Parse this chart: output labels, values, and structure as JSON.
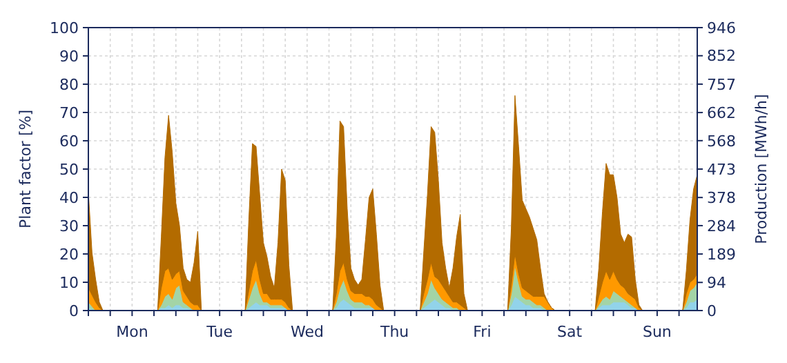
{
  "chart_data": {
    "type": "area",
    "stacked": true,
    "ylabel": "Plant factor [%]",
    "y2label": "Production [MWh/h]",
    "categories": [
      null,
      null,
      null,
      null,
      null,
      null,
      null,
      null,
      null,
      null,
      null,
      null,
      "Mon",
      null,
      null,
      null,
      null,
      null,
      null,
      null,
      null,
      null,
      null,
      null,
      null,
      null,
      null,
      null,
      null,
      null,
      null,
      null,
      null,
      null,
      null,
      null,
      "Tue",
      null,
      null,
      null,
      null,
      null,
      null,
      null,
      null,
      null,
      null,
      null,
      null,
      null,
      null,
      null,
      null,
      null,
      null,
      null,
      null,
      null,
      null,
      null,
      "Wed",
      null,
      null,
      null,
      null,
      null,
      null,
      null,
      null,
      null,
      null,
      null,
      null,
      null,
      null,
      null,
      null,
      null,
      null,
      null,
      null,
      null,
      null,
      null,
      "Thu",
      null,
      null,
      null,
      null,
      null,
      null,
      null,
      null,
      null,
      null,
      null,
      null,
      null,
      null,
      null,
      null,
      null,
      null,
      null,
      null,
      null,
      null,
      null,
      "Fri",
      null,
      null,
      null,
      null,
      null,
      null,
      null,
      null,
      null,
      null,
      null,
      null,
      null,
      null,
      null,
      null,
      null,
      null,
      null,
      null,
      null,
      null,
      null,
      "Sat",
      null,
      null,
      null,
      null,
      null,
      null,
      null,
      null,
      null,
      null,
      null,
      null,
      null,
      null,
      null,
      null,
      null,
      null,
      null,
      null,
      null,
      null,
      null,
      "Sun",
      null,
      null,
      null,
      null,
      null,
      null,
      null,
      null,
      null,
      null,
      null
    ],
    "series": [
      {
        "color": "#92d3ea",
        "values": [
          1,
          0.5,
          0,
          0,
          0,
          0,
          0,
          0,
          0,
          0,
          0,
          0,
          0,
          0,
          0,
          0,
          0,
          0,
          0,
          0,
          1,
          1,
          2,
          1,
          2,
          2,
          1,
          1,
          0.5,
          0,
          0,
          0,
          0,
          0,
          0,
          0,
          0,
          0,
          0,
          0,
          0,
          0,
          0,
          0,
          1,
          2,
          3,
          2,
          2,
          2,
          1,
          1,
          1,
          1,
          1,
          0,
          0,
          0,
          0,
          0,
          0,
          0,
          0,
          0,
          0,
          0,
          0,
          0,
          1,
          3,
          4,
          3,
          2,
          1,
          1,
          1,
          1,
          1,
          1,
          0,
          0,
          0,
          0,
          0,
          0,
          0,
          0,
          0,
          0,
          0,
          0,
          0,
          1,
          2,
          3,
          4,
          3,
          2,
          1,
          1,
          0,
          0,
          0,
          0,
          0,
          0,
          0,
          0,
          0,
          0,
          0,
          0,
          0,
          0,
          0,
          0,
          2,
          5,
          4,
          3,
          2,
          2,
          1,
          1,
          1,
          0,
          0,
          0,
          0,
          0,
          0,
          0,
          0,
          0,
          0,
          0,
          0,
          0,
          0,
          0,
          1,
          2,
          2,
          2,
          3,
          3,
          3,
          3,
          2,
          1,
          1,
          0,
          0,
          0,
          0,
          0,
          0,
          0,
          0,
          0,
          0,
          0,
          0,
          0,
          1,
          3,
          3,
          4
        ]
      },
      {
        "color": "#a3d4a6",
        "values": [
          2,
          1,
          0,
          0,
          0,
          0,
          0,
          0,
          0,
          0,
          0,
          0,
          0,
          0,
          0,
          0,
          0,
          0,
          0,
          0,
          1,
          4,
          4,
          3,
          6,
          7,
          2,
          1,
          0.5,
          0,
          0,
          0,
          0,
          0,
          0,
          0,
          0,
          0,
          0,
          0,
          0,
          0,
          0,
          0,
          3,
          6,
          8,
          4,
          1,
          1,
          1,
          1,
          1,
          1,
          0,
          0,
          0,
          0,
          0,
          0,
          0,
          0,
          0,
          0,
          0,
          0,
          0,
          0,
          2,
          5,
          7,
          4,
          2,
          2,
          2,
          2,
          1,
          1,
          0,
          0,
          0,
          0,
          0,
          0,
          0,
          0,
          0,
          0,
          0,
          0,
          0,
          0,
          2,
          4,
          8,
          4,
          3,
          2,
          2,
          1,
          1,
          1,
          0,
          0,
          0,
          0,
          0,
          0,
          0,
          0,
          0,
          0,
          0,
          0,
          0,
          0,
          4,
          11,
          6,
          2,
          2,
          2,
          2,
          1,
          1,
          1,
          0,
          0,
          0,
          0,
          0,
          0,
          0,
          0,
          0,
          0,
          0,
          0,
          0,
          0,
          1,
          2,
          3,
          2,
          4,
          3,
          2,
          1,
          1,
          1,
          0,
          0,
          0,
          0,
          0,
          0,
          0,
          0,
          0,
          0,
          0,
          0,
          0,
          0,
          2,
          4,
          5,
          6
        ]
      },
      {
        "color": "#ff9900",
        "values": [
          5,
          4,
          3,
          1,
          0,
          0,
          0,
          0,
          0,
          0,
          0,
          0,
          0,
          0,
          0,
          0,
          0,
          0,
          0,
          0,
          6,
          9,
          9,
          7,
          5,
          5,
          4,
          3,
          2,
          2,
          2,
          0,
          0,
          0,
          0,
          0,
          0,
          0,
          0,
          0,
          0,
          0,
          0,
          0,
          3,
          6,
          7,
          5,
          3,
          3,
          2,
          2,
          2,
          2,
          2,
          1,
          0,
          0,
          0,
          0,
          0,
          0,
          0,
          0,
          0,
          0,
          0,
          0,
          3,
          6,
          6,
          4,
          3,
          3,
          3,
          3,
          3,
          3,
          3,
          2,
          1,
          0,
          0,
          0,
          0,
          0,
          0,
          0,
          0,
          0,
          0,
          0,
          3,
          5,
          6,
          4,
          5,
          5,
          4,
          3,
          2,
          2,
          2,
          1,
          0,
          0,
          0,
          0,
          0,
          0,
          0,
          0,
          0,
          0,
          0,
          0,
          3,
          4,
          3,
          3,
          3,
          2,
          2,
          3,
          3,
          4,
          3,
          1,
          0,
          0,
          0,
          0,
          0,
          0,
          0,
          0,
          0,
          0,
          0,
          0,
          3,
          6,
          9,
          7,
          7,
          5,
          4,
          4,
          3,
          3,
          3,
          1,
          0,
          0,
          0,
          0,
          0,
          0,
          0,
          0,
          0,
          0,
          0,
          0,
          3,
          3,
          3,
          3
        ]
      },
      {
        "color": "#b36b00",
        "values": [
          34,
          15,
          8,
          2,
          0,
          0,
          0,
          0,
          0,
          0,
          0,
          0,
          0,
          0,
          0,
          0,
          0,
          0,
          0,
          0,
          18,
          40,
          54,
          45,
          25,
          16,
          8,
          6,
          7,
          15,
          26,
          0,
          0,
          0,
          0,
          0,
          0,
          0,
          0,
          0,
          0,
          0,
          0,
          0,
          25,
          45,
          40,
          30,
          18,
          13,
          8,
          4,
          20,
          46,
          43,
          15,
          0,
          0,
          0,
          0,
          0,
          0,
          0,
          0,
          0,
          0,
          0,
          0,
          20,
          53,
          48,
          25,
          8,
          5,
          3,
          5,
          20,
          35,
          39,
          25,
          8,
          0,
          0,
          0,
          0,
          0,
          0,
          0,
          0,
          0,
          0,
          0,
          15,
          30,
          48,
          51,
          35,
          15,
          8,
          3,
          12,
          23,
          32,
          5,
          0,
          0,
          0,
          0,
          0,
          0,
          0,
          0,
          0,
          0,
          0,
          0,
          20,
          56,
          45,
          31,
          29,
          27,
          24,
          20,
          10,
          1,
          0,
          0,
          0,
          0,
          0,
          0,
          0,
          0,
          0,
          0,
          0,
          0,
          0,
          0,
          10,
          25,
          38,
          37,
          34,
          29,
          18,
          16,
          21,
          21,
          7,
          1,
          0,
          0,
          0,
          0,
          0,
          0,
          0,
          0,
          0,
          0,
          0,
          0,
          8,
          22,
          32,
          35
        ]
      }
    ],
    "ylim": [
      0,
      100
    ],
    "yticks": [
      0,
      10,
      20,
      30,
      40,
      50,
      60,
      70,
      80,
      90,
      100
    ],
    "y2lim": [
      0,
      946
    ],
    "y2ticks": [
      0,
      94,
      189,
      284,
      378,
      473,
      568,
      662,
      757,
      852,
      946
    ],
    "grid": true
  }
}
